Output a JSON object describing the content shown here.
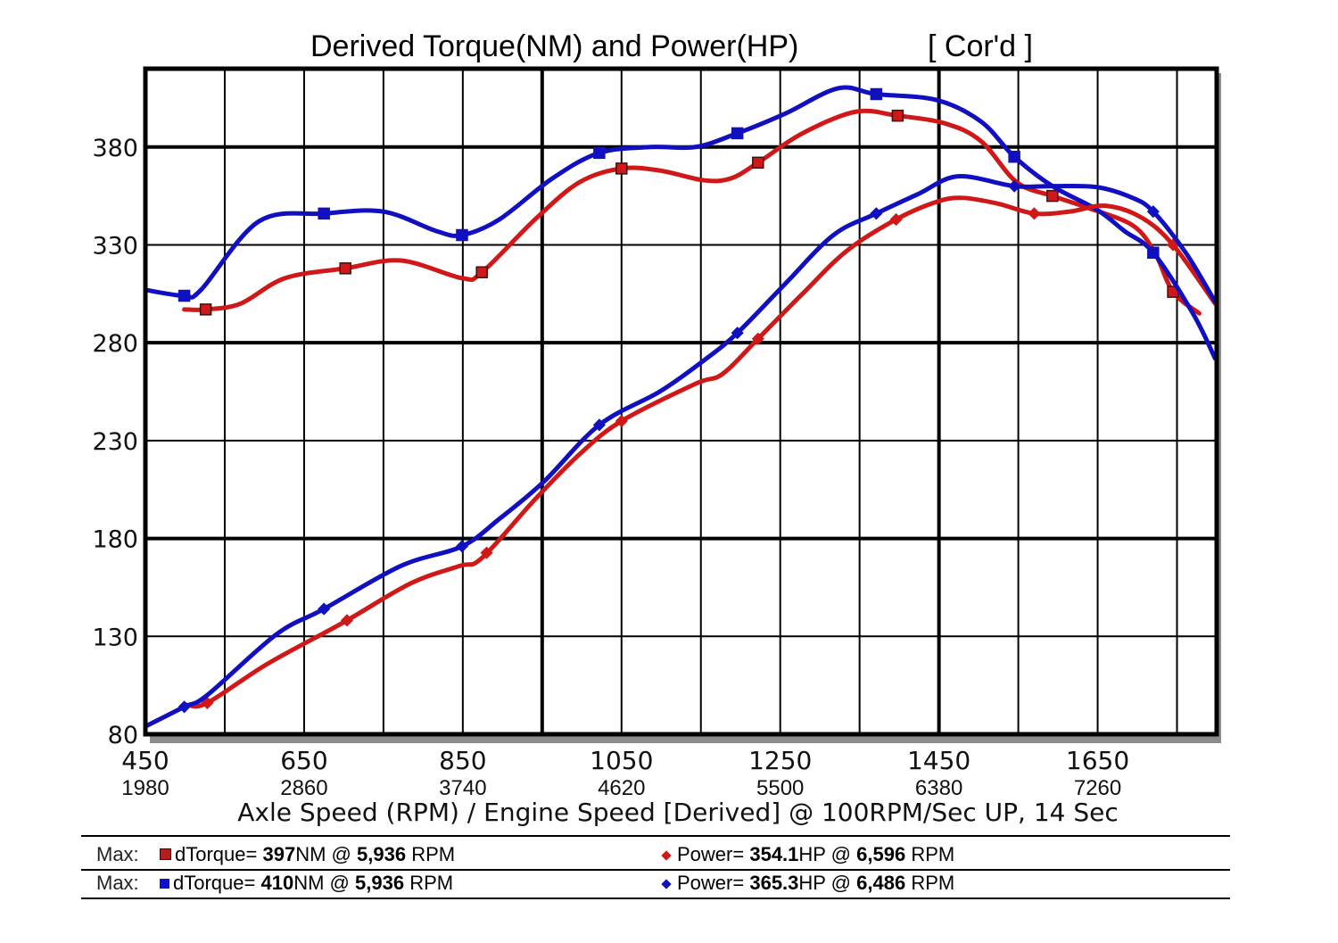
{
  "chart_data": {
    "type": "line",
    "title": "Derived Torque(NM) and Power(HP)",
    "title_tag": "[ Cor'd ]",
    "xlabel": "Axle Speed (RPM) / Engine Speed [Derived] @ 100RPM/Sec UP, 14 Sec",
    "ylabel": "",
    "xlim": [
      450,
      1800
    ],
    "ylim": [
      80,
      420
    ],
    "grid": true,
    "x_ticks": [
      450,
      650,
      850,
      1050,
      1250,
      1450,
      1650
    ],
    "x_ticks_secondary": [
      "1980",
      "2860",
      "3740",
      "4620",
      "5500",
      "6380",
      "7260"
    ],
    "x_minor_step": 100,
    "x_major_lines": [
      950,
      1450
    ],
    "y_ticks": [
      80,
      130,
      180,
      230,
      280,
      330,
      380
    ],
    "legend_position": "bottom",
    "series": [
      {
        "name": "dTorque (run 1)",
        "kind": "torque",
        "color": "#d01818",
        "marker": "square",
        "x": [
          499,
          526,
          570,
          626,
          702,
          772,
          849,
          874,
          941,
          997,
          1050,
          1098,
          1154,
          1188,
          1222,
          1278,
          1345,
          1398,
          1458,
          1503,
          1548,
          1593,
          1637,
          1694,
          1722,
          1745,
          1778
        ],
        "y": [
          297,
          297,
          300,
          313,
          318,
          322,
          313,
          316,
          343,
          362,
          369,
          368,
          363,
          364,
          372,
          387,
          398,
          396,
          392,
          383,
          362,
          355,
          349,
          340,
          326,
          306,
          295
        ],
        "markers_x": [
          526,
          702,
          874,
          1050,
          1222,
          1398,
          1593,
          1745
        ]
      },
      {
        "name": "dTorque (run 2)",
        "kind": "torque",
        "color": "#1010c0",
        "marker": "square",
        "x": [
          450,
          499,
          520,
          593,
          675,
          750,
          817,
          849,
          896,
          963,
          1022,
          1087,
          1143,
          1196,
          1256,
          1323,
          1371,
          1447,
          1503,
          1545,
          1593,
          1649,
          1684,
          1720,
          1770,
          1798
        ],
        "y": [
          307,
          304,
          307,
          342,
          346,
          347,
          337,
          335,
          343,
          364,
          377,
          380,
          380,
          387,
          397,
          410,
          407,
          404,
          393,
          375,
          360,
          348,
          337,
          326,
          295,
          272
        ],
        "markers_x": [
          499,
          675,
          849,
          1022,
          1196,
          1371,
          1545,
          1720
        ]
      },
      {
        "name": "Power (run 1)",
        "kind": "power",
        "color": "#d01818",
        "marker": "diamond",
        "x": [
          503,
          528,
          604,
          699,
          784,
          846,
          874,
          941,
          997,
          1050,
          1143,
          1177,
          1222,
          1278,
          1334,
          1396,
          1447,
          1480,
          1525,
          1570,
          1615,
          1660,
          1705,
          1745,
          1798
        ],
        "y": [
          95,
          96,
          116,
          137,
          157,
          166,
          170,
          200,
          223,
          240,
          259,
          264,
          282,
          305,
          327,
          343,
          352,
          354,
          351,
          346,
          347,
          350,
          344,
          330,
          300
        ],
        "markers_x": [
          528,
          704,
          880,
          1050,
          1222,
          1396,
          1570,
          1745
        ]
      },
      {
        "name": "Power (run 2)",
        "kind": "power",
        "color": "#1010c0",
        "marker": "diamond",
        "x": [
          450,
          499,
          528,
          615,
          675,
          772,
          849,
          896,
          952,
          1022,
          1098,
          1154,
          1196,
          1256,
          1317,
          1371,
          1424,
          1474,
          1545,
          1593,
          1649,
          1694,
          1720,
          1761,
          1798
        ],
        "y": [
          84,
          94,
          100,
          131,
          144,
          166,
          176,
          190,
          209,
          238,
          255,
          271,
          285,
          310,
          335,
          346,
          356,
          365,
          360,
          360,
          359.5,
          354,
          347,
          326,
          301
        ],
        "markers_x": [
          499,
          675,
          849,
          1022,
          1196,
          1371,
          1545,
          1720
        ]
      }
    ]
  },
  "footer": {
    "rows": [
      {
        "max_label": "Max:",
        "color": "#b02020",
        "torque_label": "dTorque=",
        "torque_value": "397",
        "torque_unit": "NM @",
        "torque_rpm": "5,936",
        "rpm_unit": "RPM",
        "power_label": "Power=",
        "power_value": "354.1",
        "power_unit": "HP @",
        "power_rpm": "6,596",
        "power_rpm_unit": "RPM"
      },
      {
        "max_label": "Max:",
        "color": "#1010d0",
        "torque_label": "dTorque=",
        "torque_value": "410",
        "torque_unit": "NM @",
        "torque_rpm": "5,936",
        "rpm_unit": "RPM",
        "power_label": "Power=",
        "power_value": "365.3",
        "power_unit": "HP @",
        "power_rpm": "6,486",
        "power_rpm_unit": "RPM"
      }
    ]
  }
}
